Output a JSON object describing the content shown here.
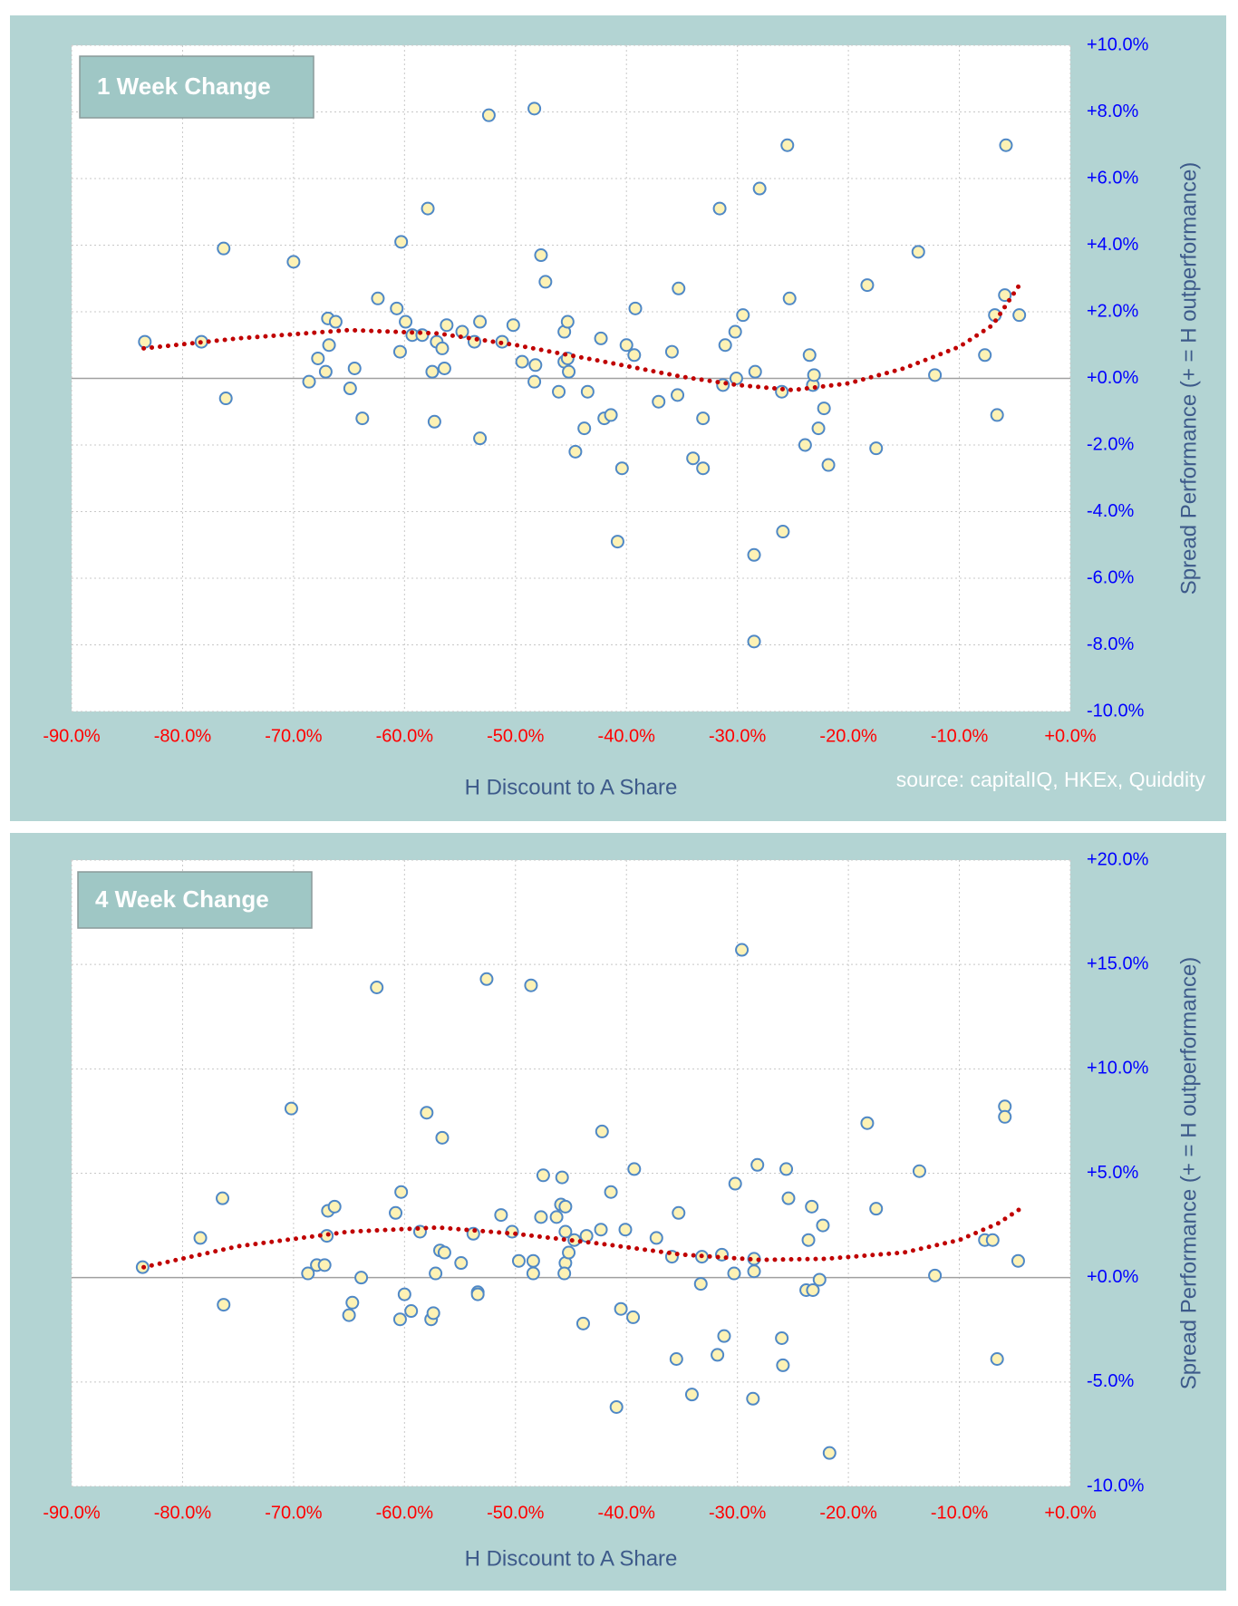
{
  "chart_data": [
    {
      "type": "scatter",
      "title": "1 Week Change",
      "xlabel": "H Discount to A Share",
      "ylabel": "Spread Performance (+ = H outperformance)",
      "source": "source: capitalIQ, HKEx, Quiddity",
      "color": "#fdf2b5",
      "edgecolor": "#4f88c6",
      "grid": true,
      "xlim": [
        -90,
        0
      ],
      "ylim": [
        -10,
        10
      ],
      "xticks": [
        {
          "value": -90,
          "label": "-90.0%"
        },
        {
          "value": -80,
          "label": "-80.0%"
        },
        {
          "value": -70,
          "label": "-70.0%"
        },
        {
          "value": -60,
          "label": "-60.0%"
        },
        {
          "value": -50,
          "label": "-50.0%"
        },
        {
          "value": -40,
          "label": "-40.0%"
        },
        {
          "value": -30,
          "label": "-30.0%"
        },
        {
          "value": -20,
          "label": "-20.0%"
        },
        {
          "value": -10,
          "label": "-10.0%"
        },
        {
          "value": 0,
          "label": "+0.0%"
        }
      ],
      "yticks": [
        {
          "value": 10,
          "label": "+10.0%"
        },
        {
          "value": 8,
          "label": "+8.0%"
        },
        {
          "value": 6,
          "label": "+6.0%"
        },
        {
          "value": 4,
          "label": "+4.0%"
        },
        {
          "value": 2,
          "label": "+2.0%"
        },
        {
          "value": 0,
          "label": "+0.0%"
        },
        {
          "value": -2,
          "label": "-2.0%"
        },
        {
          "value": -4,
          "label": "-4.0%"
        },
        {
          "value": -6,
          "label": "-6.0%"
        },
        {
          "value": -8,
          "label": "-8.0%"
        },
        {
          "value": -10,
          "label": "-10.0%"
        }
      ],
      "x": [
        -83.4,
        -78.3,
        -76.1,
        -76.3,
        -70.0,
        -68.6,
        -67.8,
        -67.1,
        -66.8,
        -66.9,
        -66.2,
        -64.9,
        -64.5,
        -63.8,
        -62.4,
        -60.7,
        -60.4,
        -60.3,
        -59.9,
        -59.3,
        -58.4,
        -57.9,
        -57.5,
        -57.3,
        -57.1,
        -56.6,
        -56.4,
        -56.2,
        -54.8,
        -53.7,
        -53.2,
        -53.2,
        -52.4,
        -51.2,
        -50.2,
        -49.4,
        -48.3,
        -48.2,
        -48.3,
        -47.7,
        -47.3,
        -46.1,
        -45.6,
        -45.3,
        -45.6,
        -45.3,
        -45.2,
        -44.6,
        -43.8,
        -43.5,
        -42.3,
        -42.0,
        -41.4,
        -40.8,
        -40.4,
        -40.0,
        -39.3,
        -39.2,
        -37.1,
        -35.9,
        -35.4,
        -35.3,
        -34.0,
        -33.1,
        -33.1,
        -31.6,
        -31.3,
        -31.1,
        -30.2,
        -30.1,
        -29.5,
        -28.5,
        -28.5,
        -28.4,
        -28.0,
        -26.0,
        -25.9,
        -25.5,
        -25.3,
        -23.9,
        -23.5,
        -23.2,
        -23.1,
        -22.7,
        -22.2,
        -21.8,
        -18.3,
        -17.5,
        -13.7,
        -12.2,
        -7.7,
        -6.8,
        -6.6,
        -5.9,
        -5.8,
        -4.6
      ],
      "y": [
        1.1,
        1.1,
        -0.6,
        3.9,
        3.5,
        -0.1,
        0.6,
        0.2,
        1.0,
        1.8,
        1.7,
        -0.3,
        0.3,
        -1.2,
        2.4,
        2.1,
        0.8,
        4.1,
        1.7,
        1.3,
        1.3,
        5.1,
        0.2,
        -1.3,
        1.1,
        0.9,
        0.3,
        1.6,
        1.4,
        1.1,
        1.7,
        -1.8,
        7.9,
        1.1,
        1.6,
        0.5,
        8.1,
        0.4,
        -0.1,
        3.7,
        2.9,
        -0.4,
        1.4,
        1.7,
        0.5,
        0.6,
        0.2,
        -2.2,
        -1.5,
        -0.4,
        1.2,
        -1.2,
        -1.1,
        -4.9,
        -2.7,
        1.0,
        0.7,
        2.1,
        -0.7,
        0.8,
        -0.5,
        2.7,
        -2.4,
        -1.2,
        -2.7,
        5.1,
        -0.2,
        1.0,
        1.4,
        0.0,
        1.9,
        -5.3,
        -7.9,
        0.2,
        5.7,
        -0.4,
        -4.6,
        7.0,
        2.4,
        -2.0,
        0.7,
        -0.2,
        0.1,
        -1.5,
        -0.9,
        -2.6,
        2.8,
        -2.1,
        3.8,
        0.1,
        0.7,
        1.9,
        -1.1,
        2.5,
        7.0,
        1.9
      ],
      "trend": {
        "color": "#c00000",
        "x": [
          -83.5,
          -75,
          -65,
          -57,
          -50,
          -42,
          -35,
          -30,
          -25,
          -20,
          -15,
          -10,
          -7,
          -4.5
        ],
        "y": [
          0.9,
          1.2,
          1.45,
          1.35,
          1.0,
          0.5,
          0.05,
          -0.2,
          -0.35,
          -0.15,
          0.3,
          0.95,
          1.6,
          2.85
        ]
      }
    },
    {
      "type": "scatter",
      "title": "4 Week Change",
      "xlabel": "H Discount to A Share",
      "ylabel": "Spread Performance (+ = H outperformance)",
      "color": "#fdf2b5",
      "edgecolor": "#4f88c6",
      "grid": true,
      "xlim": [
        -90,
        0
      ],
      "ylim": [
        -10,
        20
      ],
      "xticks": [
        {
          "value": -90,
          "label": "-90.0%"
        },
        {
          "value": -80,
          "label": "-80.0%"
        },
        {
          "value": -70,
          "label": "-70.0%"
        },
        {
          "value": -60,
          "label": "-60.0%"
        },
        {
          "value": -50,
          "label": "-50.0%"
        },
        {
          "value": -40,
          "label": "-40.0%"
        },
        {
          "value": -30,
          "label": "-30.0%"
        },
        {
          "value": -20,
          "label": "-20.0%"
        },
        {
          "value": -10,
          "label": "-10.0%"
        },
        {
          "value": 0,
          "label": "+0.0%"
        }
      ],
      "yticks": [
        {
          "value": 20,
          "label": "+20.0%"
        },
        {
          "value": 15,
          "label": "+15.0%"
        },
        {
          "value": 10,
          "label": "+10.0%"
        },
        {
          "value": 5,
          "label": "+5.0%"
        },
        {
          "value": 0,
          "label": "+0.0%"
        },
        {
          "value": -5,
          "label": "-5.0%"
        },
        {
          "value": -10,
          "label": "-10.0%"
        }
      ],
      "x": [
        -83.6,
        -78.4,
        -76.4,
        -76.3,
        -70.2,
        -68.7,
        -67.9,
        -67.2,
        -67.0,
        -66.9,
        -66.3,
        -65.0,
        -64.7,
        -63.9,
        -62.5,
        -60.8,
        -60.4,
        -60.3,
        -60.0,
        -59.4,
        -58.6,
        -58.0,
        -57.6,
        -57.4,
        -57.2,
        -56.8,
        -56.6,
        -56.4,
        -54.9,
        -53.8,
        -53.4,
        -53.4,
        -52.6,
        -51.3,
        -50.3,
        -49.7,
        -48.6,
        -48.4,
        -48.4,
        -47.7,
        -47.5,
        -46.3,
        -45.9,
        -45.8,
        -45.5,
        -45.5,
        -45.5,
        -45.6,
        -45.2,
        -44.7,
        -43.9,
        -43.6,
        -42.3,
        -42.2,
        -41.4,
        -40.9,
        -40.5,
        -40.1,
        -39.4,
        -39.3,
        -37.3,
        -35.9,
        -35.5,
        -35.3,
        -34.1,
        -33.3,
        -33.2,
        -31.8,
        -31.4,
        -31.2,
        -30.3,
        -30.2,
        -29.6,
        -28.6,
        -28.5,
        -28.5,
        -28.2,
        -26.0,
        -25.9,
        -25.6,
        -25.4,
        -23.8,
        -23.6,
        -23.3,
        -23.2,
        -22.6,
        -22.3,
        -21.7,
        -18.3,
        -17.5,
        -13.6,
        -12.2,
        -7.7,
        -7.0,
        -6.6,
        -5.9,
        -5.9,
        -4.7
      ],
      "y": [
        0.5,
        1.9,
        3.8,
        -1.3,
        8.1,
        0.2,
        0.6,
        0.6,
        2.0,
        3.2,
        3.4,
        -1.8,
        -1.2,
        0.0,
        13.9,
        3.1,
        -2.0,
        4.1,
        -0.8,
        -1.6,
        2.2,
        7.9,
        -2.0,
        -1.7,
        0.2,
        1.3,
        6.7,
        1.2,
        0.7,
        2.1,
        -0.7,
        -0.8,
        14.3,
        3.0,
        2.2,
        0.8,
        14.0,
        0.8,
        0.2,
        2.9,
        4.9,
        2.9,
        3.5,
        4.8,
        3.4,
        2.2,
        0.7,
        0.2,
        1.2,
        1.8,
        -2.2,
        2.0,
        2.3,
        7.0,
        4.1,
        -6.2,
        -1.5,
        2.3,
        -1.9,
        5.2,
        1.9,
        1.0,
        -3.9,
        3.1,
        -5.6,
        -0.3,
        1.0,
        -3.7,
        1.1,
        -2.8,
        0.2,
        4.5,
        15.7,
        -5.8,
        0.9,
        0.3,
        5.4,
        -2.9,
        -4.2,
        5.2,
        3.8,
        -0.6,
        1.8,
        3.4,
        -0.6,
        -0.1,
        2.5,
        -8.4,
        7.4,
        3.3,
        5.1,
        0.1,
        1.8,
        1.8,
        -3.9,
        8.2,
        7.7,
        0.8
      ],
      "trend": {
        "color": "#c00000",
        "x": [
          -83.5,
          -75,
          -65,
          -57,
          -50,
          -42,
          -35,
          -28,
          -22,
          -15,
          -10,
          -6.5,
          -4.5
        ],
        "y": [
          0.5,
          1.5,
          2.2,
          2.4,
          2.1,
          1.6,
          1.1,
          0.85,
          0.9,
          1.2,
          1.8,
          2.6,
          3.3
        ]
      }
    }
  ]
}
